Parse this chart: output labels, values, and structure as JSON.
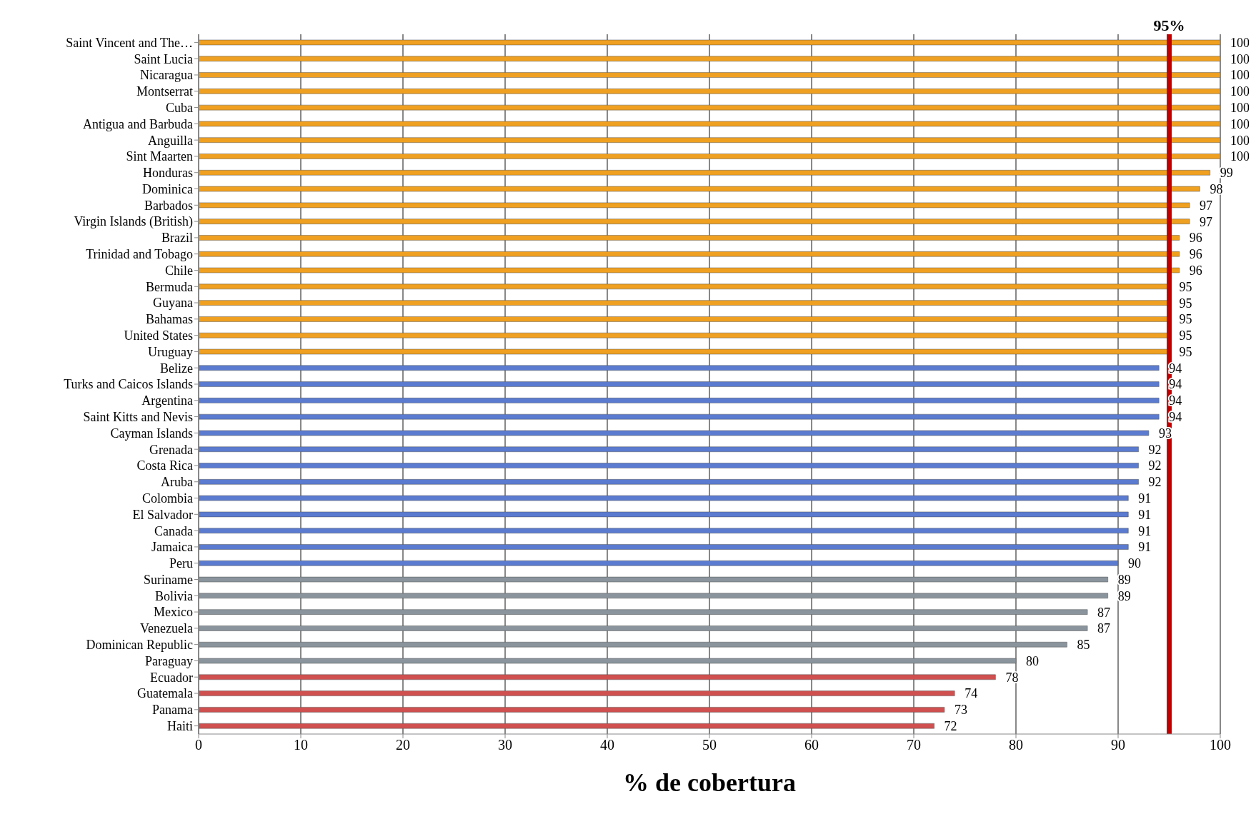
{
  "chart_data": {
    "type": "bar",
    "orientation": "horizontal",
    "xlabel": "% de cobertura",
    "categories": [
      "Saint Vincent and The…",
      "Saint Lucia",
      "Nicaragua",
      "Montserrat",
      "Cuba",
      "Antigua and Barbuda",
      "Anguilla",
      "Sint Maarten",
      "Honduras",
      "Dominica",
      "Barbados",
      "Virgin Islands (British)",
      "Brazil",
      "Trinidad and Tobago",
      "Chile",
      "Bermuda",
      "Guyana",
      "Bahamas",
      "United States",
      "Uruguay",
      "Belize",
      "Turks and Caicos Islands",
      "Argentina",
      "Saint Kitts and Nevis",
      "Cayman Islands",
      "Grenada",
      "Costa Rica",
      "Aruba",
      "Colombia",
      "El Salvador",
      "Canada",
      "Jamaica",
      "Peru",
      "Suriname",
      "Bolivia",
      "Mexico",
      "Venezuela",
      "Dominican Republic",
      "Paraguay",
      "Ecuador",
      "Guatemala",
      "Panama",
      "Haiti"
    ],
    "values": [
      100,
      100,
      100,
      100,
      100,
      100,
      100,
      100,
      99,
      98,
      97,
      97,
      96,
      96,
      96,
      95,
      95,
      95,
      95,
      95,
      94,
      94,
      94,
      94,
      93,
      92,
      92,
      92,
      91,
      91,
      91,
      91,
      90,
      89,
      89,
      87,
      87,
      85,
      80,
      78,
      74,
      73,
      72
    ],
    "colors": [
      "#f0a020",
      "#f0a020",
      "#f0a020",
      "#f0a020",
      "#f0a020",
      "#f0a020",
      "#f0a020",
      "#f0a020",
      "#f0a020",
      "#f0a020",
      "#f0a020",
      "#f0a020",
      "#f0a020",
      "#f0a020",
      "#f0a020",
      "#f0a020",
      "#f0a020",
      "#f0a020",
      "#f0a020",
      "#f0a020",
      "#5b7bd0",
      "#5b7bd0",
      "#5b7bd0",
      "#5b7bd0",
      "#5b7bd0",
      "#5b7bd0",
      "#5b7bd0",
      "#5b7bd0",
      "#5b7bd0",
      "#5b7bd0",
      "#5b7bd0",
      "#5b7bd0",
      "#5b7bd0",
      "#8a949c",
      "#8a949c",
      "#8a949c",
      "#8a949c",
      "#8a949c",
      "#8a949c",
      "#d05050",
      "#d05050",
      "#d05050",
      "#d05050"
    ],
    "xlim": [
      0,
      100
    ],
    "xticks": [
      0,
      10,
      20,
      30,
      40,
      50,
      60,
      70,
      80,
      90,
      100
    ],
    "grid": "x",
    "data_labels": true,
    "ref_lines": [
      {
        "axis": "x",
        "value": 95,
        "label": "95%",
        "color": "#c00000"
      }
    ]
  }
}
